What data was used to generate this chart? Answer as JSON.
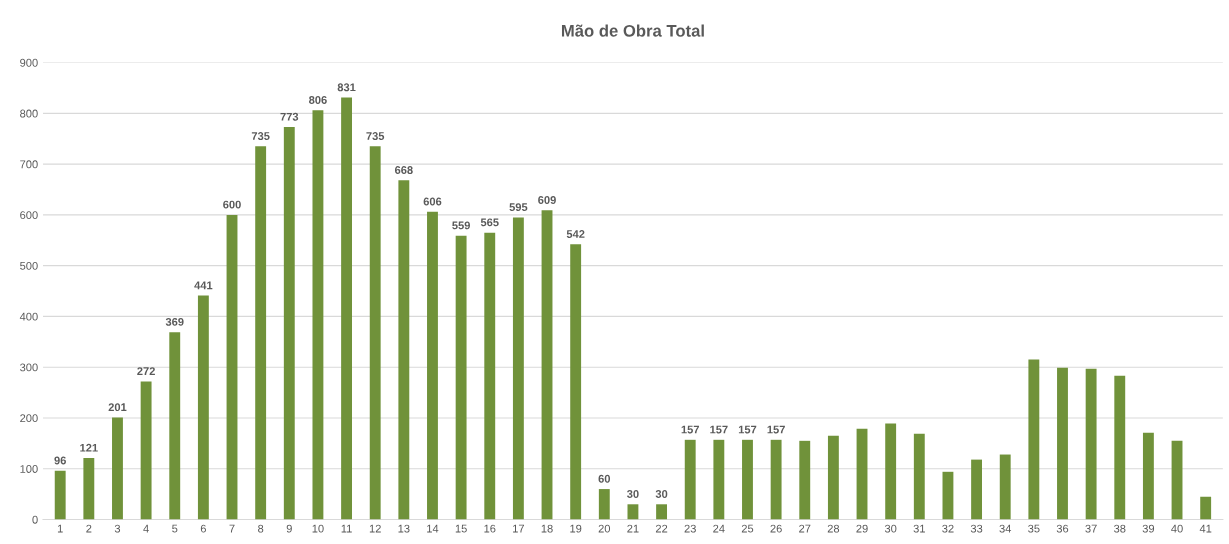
{
  "chart_data": {
    "type": "bar",
    "title": "Mão de Obra Total",
    "categories": [
      "1",
      "2",
      "3",
      "4",
      "5",
      "6",
      "7",
      "8",
      "9",
      "10",
      "11",
      "12",
      "13",
      "14",
      "15",
      "16",
      "17",
      "18",
      "19",
      "20",
      "21",
      "22",
      "23",
      "24",
      "25",
      "26",
      "27",
      "28",
      "29",
      "30",
      "31",
      "32",
      "33",
      "34",
      "35",
      "36",
      "37",
      "38",
      "39",
      "40",
      "41"
    ],
    "values": [
      96,
      121,
      201,
      272,
      369,
      441,
      600,
      735,
      773,
      806,
      831,
      735,
      668,
      606,
      559,
      565,
      595,
      609,
      542,
      60,
      30,
      30,
      157,
      157,
      157,
      157,
      155,
      165,
      179,
      189,
      169,
      94,
      118,
      128,
      315,
      299,
      297,
      283,
      171,
      155,
      45
    ],
    "value_labels": [
      "96",
      "121",
      "201",
      "272",
      "369",
      "441",
      "600",
      "735",
      "773",
      "806",
      "831",
      "735",
      "668",
      "606",
      "559",
      "565",
      "595",
      "609",
      "542",
      "60",
      "30",
      "30",
      "157",
      "157",
      "157",
      "157",
      null,
      null,
      null,
      null,
      null,
      null,
      null,
      null,
      null,
      null,
      null,
      null,
      null,
      null,
      null
    ],
    "color": "#70923a",
    "ylim": [
      0,
      900
    ],
    "yticks": [
      0,
      100,
      200,
      300,
      400,
      500,
      600,
      700,
      800,
      900
    ],
    "grid": "y",
    "legend": false
  }
}
